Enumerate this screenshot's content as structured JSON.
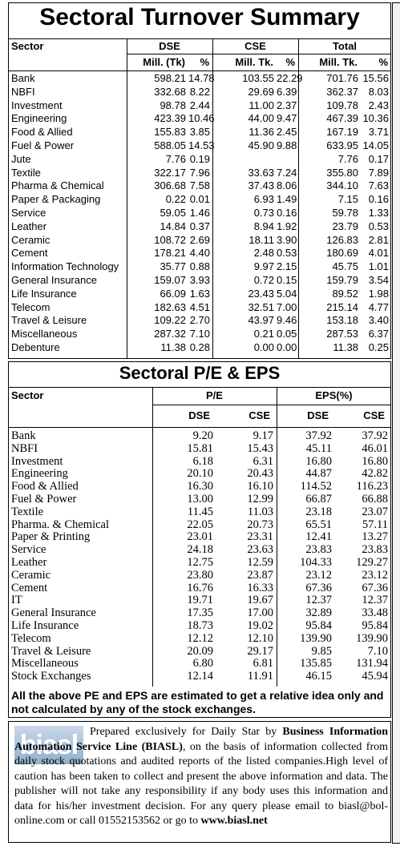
{
  "turnover": {
    "title": "Sectoral Turnover Summary",
    "header": [
      "Sector",
      "DSE",
      "CSE",
      "Total"
    ],
    "subheader": [
      "Mill. (Tk)",
      "%",
      "Mill. Tk.",
      "%",
      "Mill. Tk.",
      "%"
    ],
    "rows": [
      [
        "Bank",
        "598.21",
        "14.78",
        "103.55",
        "22.29",
        "701.76",
        "15.56"
      ],
      [
        "NBFI",
        "332.68",
        "8.22",
        "29.69",
        "6.39",
        "362.37",
        "8.03"
      ],
      [
        "Investment",
        "98.78",
        "2.44",
        "11.00",
        "2.37",
        "109.78",
        "2.43"
      ],
      [
        "Engineering",
        "423.39",
        "10.46",
        "44.00",
        "9.47",
        "467.39",
        "10.36"
      ],
      [
        "Food & Allied",
        "155.83",
        "3.85",
        "11.36",
        "2.45",
        "167.19",
        "3.71"
      ],
      [
        "Fuel & Power",
        "588.05",
        "14.53",
        "45.90",
        "9.88",
        "633.95",
        "14.05"
      ],
      [
        "Jute",
        "7.76",
        "0.19",
        null,
        null,
        "7.76",
        "0.17"
      ],
      [
        "Textile",
        "322.17",
        "7.96",
        "33.63",
        "7.24",
        "355.80",
        "7.89"
      ],
      [
        "Pharma & Chemical",
        "306.68",
        "7.58",
        "37.43",
        "8.06",
        "344.10",
        "7.63"
      ],
      [
        "Paper & Packaging",
        "0.22",
        "0.01",
        "6.93",
        "1.49",
        "7.15",
        "0.16"
      ],
      [
        "Service",
        "59.05",
        "1.46",
        "0.73",
        "0.16",
        "59.78",
        "1.33"
      ],
      [
        "Leather",
        "14.84",
        "0.37",
        "8.94",
        "1.92",
        "23.79",
        "0.53"
      ],
      [
        "Ceramic",
        "108.72",
        "2.69",
        "18.11",
        "3.90",
        "126.83",
        "2.81"
      ],
      [
        "Cement",
        "178.21",
        "4.40",
        "2.48",
        "0.53",
        "180.69",
        "4.01"
      ],
      [
        "Information Technology",
        "35.77",
        "0.88",
        "9.97",
        "2.15",
        "45.75",
        "1.01"
      ],
      [
        "General Insurance",
        "159.07",
        "3.93",
        "0.72",
        "0.15",
        "159.79",
        "3.54"
      ],
      [
        "Life Insurance",
        "66.09",
        "1.63",
        "23.43",
        "5.04",
        "89.52",
        "1.98"
      ],
      [
        "Telecom",
        "182.63",
        "4.51",
        "32.51",
        "7.00",
        "215.14",
        "4.77"
      ],
      [
        "Travel & Leisure",
        "109.22",
        "2.70",
        "43.97",
        "9.46",
        "153.18",
        "3.40"
      ],
      [
        "Miscellaneous",
        "287.32",
        "7.10",
        "0.21",
        "0.05",
        "287.53",
        "6.37"
      ],
      [
        "Debenture",
        "11.38",
        "0.28",
        "0.00",
        "0.00",
        "11.38",
        "0.25"
      ]
    ]
  },
  "pe_eps": {
    "title": "Sectoral P/E & EPS",
    "header": [
      "Sector",
      "P/E",
      "EPS(%)"
    ],
    "subheader": [
      "DSE",
      "CSE",
      "DSE",
      "CSE"
    ],
    "rows": [
      [
        "Bank",
        "9.20",
        "9.17",
        "37.92",
        "37.92"
      ],
      [
        "NBFI",
        "15.81",
        "15.43",
        "45.11",
        "46.01"
      ],
      [
        "Investment",
        "6.18",
        "6.31",
        "16.80",
        "16.80"
      ],
      [
        "Engineering",
        "20.10",
        "20.43",
        "44.87",
        "42.82"
      ],
      [
        "Food & Allied",
        "16.30",
        "16.10",
        "114.52",
        "116.23"
      ],
      [
        "Fuel & Power",
        "13.00",
        "12.99",
        "66.87",
        "66.88"
      ],
      [
        "Textile",
        "11.45",
        "11.03",
        "23.18",
        "23.07"
      ],
      [
        "Pharma. & Chemical",
        "22.05",
        "20.73",
        "65.51",
        "57.11"
      ],
      [
        "Paper & Printing",
        "23.01",
        "23.31",
        "12.41",
        "13.27"
      ],
      [
        "Service",
        "24.18",
        "23.63",
        "23.83",
        "23.83"
      ],
      [
        "Leather",
        "12.75",
        "12.59",
        "104.33",
        "129.27"
      ],
      [
        "Ceramic",
        "23.80",
        "23.87",
        "23.12",
        "23.12"
      ],
      [
        "Cement",
        "16.76",
        "16.33",
        "67.36",
        "67.36"
      ],
      [
        "IT",
        "19.71",
        "19.67",
        "12.37",
        "12.37"
      ],
      [
        "General Insurance",
        "17.35",
        "17.00",
        "32.89",
        "33.48"
      ],
      [
        "Life Insurance",
        "18.73",
        "19.02",
        "95.84",
        "95.84"
      ],
      [
        "Telecom",
        "12.12",
        "12.10",
        "139.90",
        "139.90"
      ],
      [
        "Travel & Leisure",
        "20.09",
        "29.17",
        "9.85",
        "7.10"
      ],
      [
        "Miscellaneous",
        "6.80",
        "6.81",
        "135.85",
        "131.94"
      ],
      [
        "Stock Exchanges",
        "12.14",
        "11.91",
        "46.15",
        "45.94"
      ]
    ]
  },
  "note": "All the above PE and EPS are estimated to get a relative idea only and not calculated by any of the stock exchanges.",
  "footer": {
    "logo": "biasl",
    "text": [
      "Prepared exclusively for Daily Star by ",
      "Business Information Automation Service Line (BIASL)",
      ", on the basis of information collected from daily stock quotations and audited reports of the listed companies.High level of caution has been taken to collect and present the above information and data. The publisher will not take any responsibility if any body uses this information and data for his/her investment decision. For any query please email to biasl@bol-online.com or call 01552153562 or go to ",
      "www.biasl.net"
    ]
  }
}
